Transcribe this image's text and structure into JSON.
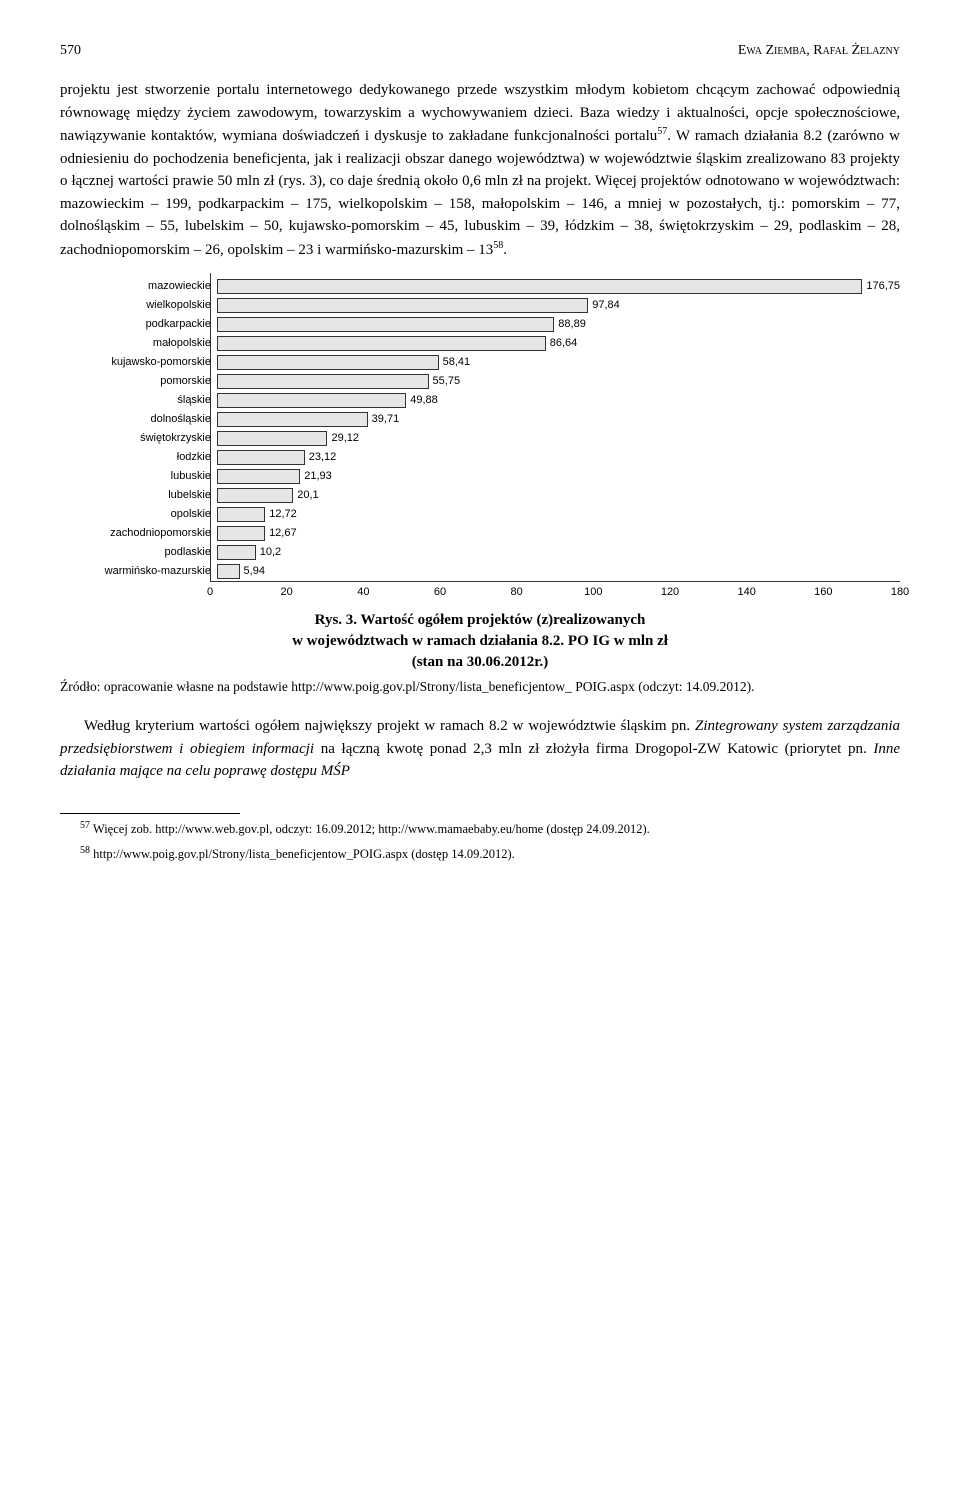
{
  "header": {
    "page": "570",
    "authors": "Ewa Ziemba, Rafał Żelazny"
  },
  "para1": "projektu jest stworzenie portalu internetowego dedykowanego przede wszystkim młodym kobietom chcącym zachować odpowiednią równowagę między życiem zawodowym, towarzyskim a wychowywaniem dzieci. Baza wiedzy i aktualności, opcje społecznościowe, nawiązywanie kontaktów, wymiana doświadczeń i dyskusje to zakładane funkcjonalności portalu",
  "fn57": "57",
  "para1b": ". W ramach działania 8.2 (zarówno w odniesieniu do pochodzenia beneficjenta, jak i realizacji obszar danego województwa) w województwie śląskim zrealizowano 83 projekty o łącznej wartości prawie 50 mln zł (rys. 3), co daje średnią około 0,6 mln zł na projekt. Więcej projektów odnotowano w województwach: mazowieckim – 199, podkarpackim – 175, wielkopolskim – 158, małopolskim – 146, a mniej w pozostałych, tj.: pomorskim – 77, dolnośląskim – 55, lubelskim – 50, kujawsko-pomorskim – 45, lubuskim – 39, łódzkim – 38, świętokrzyskim – 29, podlaskim – 28, zachodniopomorskim – 26, opolskim – 23 i warmińsko-mazurskim – 13",
  "fn58": "58",
  "para1c": ".",
  "chart": {
    "type": "horizontal-bar",
    "xmax": 180,
    "bar_color": "#e6e6e6",
    "bar_border": "#333333",
    "bars": [
      {
        "label": "mazowieckie",
        "value": 176.75
      },
      {
        "label": "wielkopolskie",
        "value": 97.84
      },
      {
        "label": "podkarpackie",
        "value": 88.89
      },
      {
        "label": "małopolskie",
        "value": 86.64
      },
      {
        "label": "kujawsko-pomorskie",
        "value": 58.41
      },
      {
        "label": "pomorskie",
        "value": 55.75
      },
      {
        "label": "śląskie",
        "value": 49.88
      },
      {
        "label": "dolnośląskie",
        "value": 39.71
      },
      {
        "label": "świętokrzyskie",
        "value": 29.12
      },
      {
        "label": "łodzkie",
        "value": 23.12
      },
      {
        "label": "lubuskie",
        "value": 21.93
      },
      {
        "label": "lubelskie",
        "value": 20.1
      },
      {
        "label": "opolskie",
        "value": 12.72
      },
      {
        "label": "zachodniopomorskie",
        "value": 12.67
      },
      {
        "label": "podlaskie",
        "value": 10.2
      },
      {
        "label": "warmińsko-mazurskie",
        "value": 5.94
      }
    ],
    "ticks": [
      0,
      20,
      40,
      60,
      80,
      100,
      120,
      140,
      160,
      180
    ]
  },
  "caption": {
    "l1": "Rys. 3. Wartość ogółem projektów (z)realizowanych",
    "l2": "w województwach w ramach działania 8.2. PO IG w mln zł",
    "l3": "(stan na 30.06.2012r.)"
  },
  "source": "Źródło: opracowanie własne na podstawie http://www.poig.gov.pl/Strony/lista_beneficjentow_ POIG.aspx (odczyt: 14.09.2012).",
  "para2a": "Według kryterium wartości ogółem największy projekt w ramach 8.2 w województwie śląskim pn. ",
  "para2b": "Zintegrowany system zarządzania przedsiębiorstwem i obiegiem informacji",
  "para2c": " na łączną kwotę ponad 2,3 mln zł złożyła firma Drogopol-ZW Katowic (priorytet pn. ",
  "para2d": "Inne działania mające na celu poprawę dostępu MŚP",
  "footnote57": " Więcej zob. http://www.web.gov.pl, odczyt: 16.09.2012; http://www.mamaebaby.eu/home (dostęp 24.09.2012).",
  "footnote58": " http://www.poig.gov.pl/Strony/lista_beneficjentow_POIG.aspx (dostęp 14.09.2012)."
}
